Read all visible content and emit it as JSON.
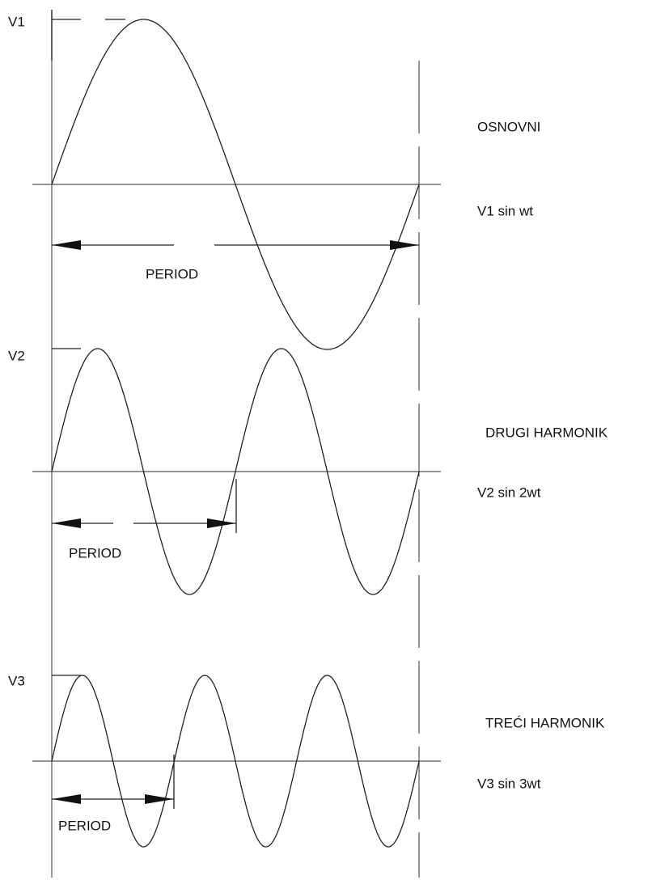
{
  "panels": [
    {
      "amplitude_label": "V1",
      "name": "OSNOVNI",
      "formula": "V1 sin wt",
      "period_label": "PERIOD"
    },
    {
      "amplitude_label": "V2",
      "name": "DRUGI HARMONIK",
      "formula": "V2 sin 2wt",
      "period_label": "PERIOD"
    },
    {
      "amplitude_label": "V3",
      "name": "TREĆI HARMONIK",
      "formula": "V3 sin 3wt",
      "period_label": "PERIOD"
    }
  ]
}
